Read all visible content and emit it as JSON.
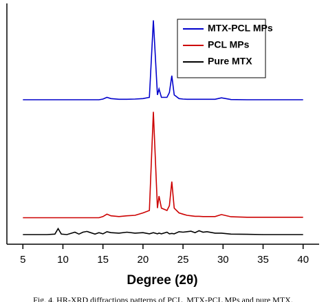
{
  "chart_data": {
    "type": "line",
    "x_label": "Degree (2θ)",
    "caption": "Fig. 4. HR-XRD diffractions patterns of PCL, MTX-PCL MPs and pure MTX.",
    "x": [
      5,
      6,
      7,
      8,
      9,
      9.4,
      9.8,
      10.5,
      11.5,
      12,
      12.5,
      13,
      14,
      14.5,
      15,
      15.5,
      16,
      17,
      18,
      19,
      20,
      20.8,
      21.3,
      21.8,
      22.0,
      22.3,
      23,
      23.3,
      23.6,
      23.9,
      24.5,
      25,
      25.5,
      26,
      26.5,
      27,
      27.5,
      28,
      29,
      29.8,
      31,
      33,
      35,
      37,
      39,
      40
    ],
    "series": [
      {
        "name": "MTX-PCL MPs",
        "color": "#0000cc",
        "values": [
          60,
          60,
          60,
          60,
          60,
          60,
          60,
          60,
          60,
          60,
          60,
          60,
          60,
          60,
          60.3,
          61,
          60.5,
          60.2,
          60.2,
          60.3,
          60.5,
          61,
          93,
          62,
          64.5,
          61,
          61,
          63,
          70,
          62,
          60.5,
          60.3,
          60.2,
          60.2,
          60.2,
          60.2,
          60.2,
          60.2,
          60.2,
          60.8,
          60.1,
          60,
          60,
          60,
          60,
          60
        ]
      },
      {
        "name": "PCL MPs",
        "color": "#cc0000",
        "values": [
          11,
          11,
          11,
          11,
          11,
          11,
          11,
          11,
          11,
          11,
          11,
          11,
          11,
          11,
          11.5,
          12.5,
          11.8,
          11.5,
          11.8,
          12,
          13,
          14,
          55,
          15,
          20,
          15,
          14,
          16,
          26,
          15,
          13,
          12.5,
          12,
          11.8,
          11.6,
          11.6,
          11.5,
          11.5,
          11.5,
          12.3,
          11.4,
          11.2,
          11.2,
          11.2,
          11.2,
          11.2
        ]
      },
      {
        "name": "Pure MTX",
        "color": "#000000",
        "values": [
          4,
          4,
          4,
          4,
          4.2,
          6.5,
          4.2,
          4,
          5,
          4.2,
          5,
          5.3,
          4.2,
          4.8,
          4.3,
          5.2,
          4.8,
          4.6,
          5,
          4.6,
          4.8,
          4.3,
          4.8,
          4.3,
          4.6,
          4.3,
          5,
          4.3,
          4.5,
          4.3,
          5.2,
          5,
          5.2,
          5.4,
          4.8,
          5.6,
          5,
          5.2,
          4.6,
          4.6,
          4.2,
          4.1,
          4,
          4,
          4,
          4
        ]
      }
    ],
    "xlim": [
      3,
      42
    ],
    "xticks": [
      5,
      10,
      15,
      20,
      25,
      30,
      35,
      40
    ],
    "ylim": [
      0,
      100
    ],
    "legend": "upper right"
  }
}
